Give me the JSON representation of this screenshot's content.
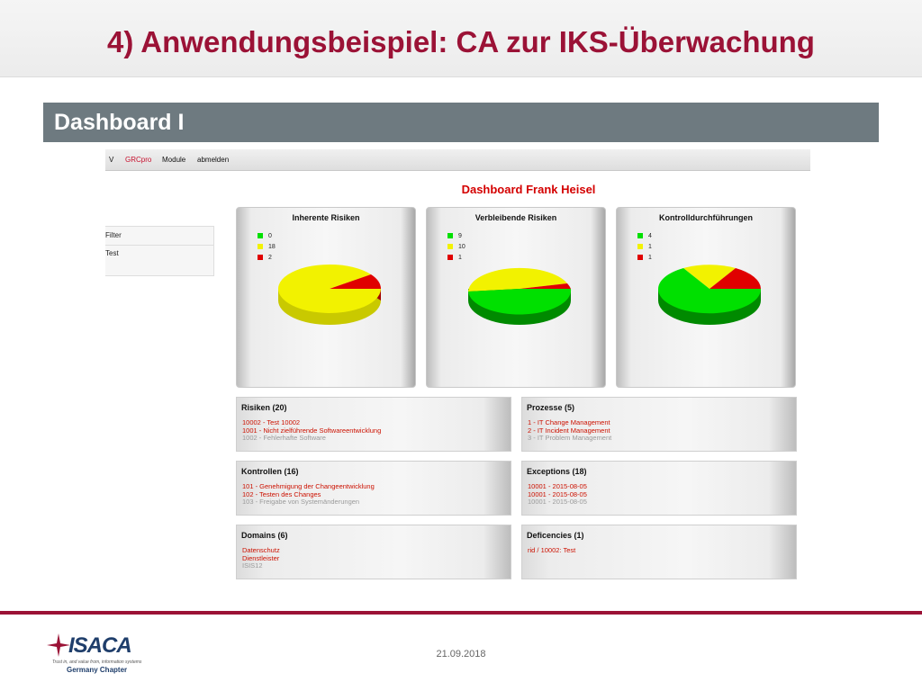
{
  "slide": {
    "title": "4) Anwendungsbeispiel: CA zur IKS-Überwachung",
    "section": "Dashboard I",
    "date": "21.09.2018"
  },
  "navbar": {
    "toggle": "V",
    "brand": "GRCpro",
    "modules": "Module",
    "logout": "abmelden"
  },
  "dashboard": {
    "title": "Dashboard Frank Heisel"
  },
  "filter": {
    "label": "Filter",
    "value": "Test"
  },
  "colors": {
    "green": "#00e000",
    "yellow": "#f2f200",
    "red": "#e00000",
    "accent": "#9b1236"
  },
  "charts": [
    {
      "title": "Inherente Risiken",
      "legend": [
        {
          "color": "#00e000",
          "value": "0"
        },
        {
          "color": "#f2f200",
          "value": "18"
        },
        {
          "color": "#e00000",
          "value": "2"
        }
      ]
    },
    {
      "title": "Verbleibende Risiken",
      "legend": [
        {
          "color": "#00e000",
          "value": "9"
        },
        {
          "color": "#f2f200",
          "value": "10"
        },
        {
          "color": "#e00000",
          "value": "1"
        }
      ]
    },
    {
      "title": "Kontrolldurchführungen",
      "legend": [
        {
          "color": "#00e000",
          "value": "4"
        },
        {
          "color": "#f2f200",
          "value": "1"
        },
        {
          "color": "#e00000",
          "value": "1"
        }
      ]
    }
  ],
  "panels": {
    "risiken": {
      "title": "Risiken (20)",
      "lines": [
        {
          "text": "10002 - Test 10002",
          "style": "red"
        },
        {
          "text": "1001 - Nicht zielführende Softwareentwicklung",
          "style": "red"
        },
        {
          "text": "1002 - Fehlerhafte Software",
          "style": "grey"
        }
      ]
    },
    "prozesse": {
      "title": "Prozesse (5)",
      "lines": [
        {
          "text": "1 - IT Change Management",
          "style": "red"
        },
        {
          "text": "2 - IT Incident Management",
          "style": "red"
        },
        {
          "text": "3 - IT Problem Management",
          "style": "grey"
        }
      ]
    },
    "kontrollen": {
      "title": "Kontrollen (16)",
      "lines": [
        {
          "text": "101 - Genehmigung der Changeentwicklung",
          "style": "red"
        },
        {
          "text": "102 - Testen des Changes",
          "style": "red"
        },
        {
          "text": "103 - Freigabe von Systemänderungen",
          "style": "grey"
        }
      ]
    },
    "exceptions": {
      "title": "Exceptions (18)",
      "lines": [
        {
          "text": "10001 - 2015-08-05",
          "style": "red"
        },
        {
          "text": "10001 - 2015-08-05",
          "style": "red"
        },
        {
          "text": "10001 - 2015-08-05",
          "style": "grey"
        }
      ]
    },
    "domains": {
      "title": "Domains (6)",
      "lines": [
        {
          "text": "Datenschutz",
          "style": "red"
        },
        {
          "text": "Dienstleister",
          "style": "red"
        },
        {
          "text": "ISIS12",
          "style": "grey"
        }
      ]
    },
    "deficencies": {
      "title": "Deficencies (1)",
      "lines": [
        {
          "text": "rid / 10002: Test",
          "style": "red"
        }
      ]
    }
  },
  "logo": {
    "name": "ISACA",
    "tagline": "Trust in, and value from, information systems",
    "chapter": "Germany Chapter"
  }
}
